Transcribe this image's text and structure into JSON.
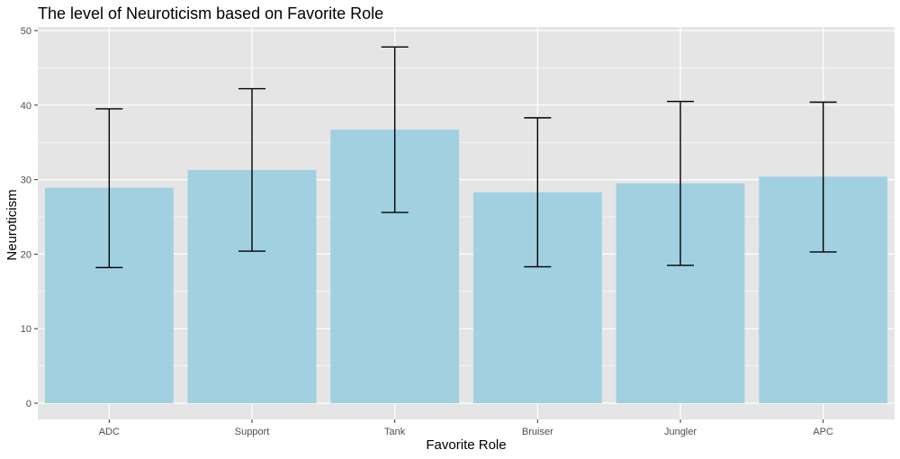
{
  "chart_data": {
    "type": "bar",
    "title": "The level of Neuroticism based on Favorite Role",
    "xlabel": "Favorite Role",
    "ylabel": "Neuroticism",
    "categories": [
      "ADC",
      "Support",
      "Tank",
      "Bruiser",
      "Jungler",
      "APC"
    ],
    "values": [
      28.9,
      31.3,
      36.7,
      28.3,
      29.5,
      30.4
    ],
    "error_bars": {
      "lower": [
        18.2,
        20.4,
        25.6,
        18.3,
        18.5,
        20.3
      ],
      "upper": [
        39.5,
        42.2,
        47.8,
        38.3,
        40.5,
        40.4
      ]
    },
    "ylim": [
      0,
      50
    ],
    "yticks": [
      0,
      10,
      20,
      30,
      40,
      50
    ],
    "grid": true,
    "bar_color": "#a1d0e0",
    "panel_color": "#e5e5e5",
    "grid_color": "#ffffff",
    "errorbar_color": "#000000"
  }
}
